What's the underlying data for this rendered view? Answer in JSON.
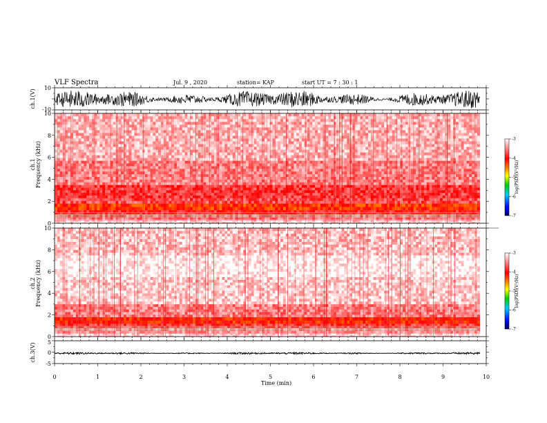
{
  "header": {
    "title": "VLF Spectra",
    "date": "Jul. 9 , 2020",
    "station": "station= KAP",
    "start": "start UT =  7 : 30 : 1"
  },
  "chart_data": [
    {
      "type": "line",
      "panel": "ch.1 waveform",
      "ylabel": "ch.1(V)",
      "ylim": [
        -10,
        10
      ],
      "yticks": [
        "10",
        "-10"
      ],
      "xlim": [
        0,
        10
      ],
      "description_values": {
        "typical_range": [
          -9,
          8
        ]
      },
      "color": "#000000"
    },
    {
      "type": "heatmap",
      "panel": "ch.1 spectrogram",
      "ylabel": "ch.1\nFrequency (kHz)",
      "ylim": [
        0,
        10
      ],
      "yticks": [
        "0",
        "2",
        "4",
        "6",
        "8",
        "10"
      ],
      "xlim": [
        0,
        9.85
      ],
      "bands": [
        {
          "from": 0.0,
          "to": 0.3,
          "level": -3.2
        },
        {
          "from": 0.3,
          "to": 0.8,
          "level": -3.6
        },
        {
          "from": 0.8,
          "to": 1.2,
          "level": -3.9
        },
        {
          "from": 1.2,
          "to": 1.8,
          "level": -4.2
        },
        {
          "from": 1.8,
          "to": 2.3,
          "level": -3.7
        },
        {
          "from": 2.3,
          "to": 3.5,
          "level": -3.8
        },
        {
          "from": 3.5,
          "to": 5.7,
          "level": -3.5
        },
        {
          "from": 5.7,
          "to": 10.0,
          "level": -3.3
        }
      ],
      "colorbar": {
        "label": "log(PSD)(V²/Hz)",
        "range": [
          -7,
          -3
        ],
        "ticks": [
          "-3",
          "-4",
          "-5",
          "-6",
          "-7"
        ]
      }
    },
    {
      "type": "heatmap",
      "panel": "ch.2 spectrogram",
      "ylabel": "ch.2\nFrequency (kHz)",
      "ylim": [
        0,
        10
      ],
      "yticks": [
        "0",
        "2",
        "4",
        "6",
        "8",
        "10"
      ],
      "xlim": [
        0,
        9.85
      ],
      "bands": [
        {
          "from": 0.0,
          "to": 0.3,
          "level": -3.2
        },
        {
          "from": 0.3,
          "to": 0.8,
          "level": -3.5
        },
        {
          "from": 0.8,
          "to": 1.2,
          "level": -3.8
        },
        {
          "from": 1.2,
          "to": 1.8,
          "level": -4.1
        },
        {
          "from": 1.8,
          "to": 3.0,
          "level": -3.5
        },
        {
          "from": 3.0,
          "to": 5.5,
          "level": -3.2
        },
        {
          "from": 5.5,
          "to": 7.5,
          "level": -3.05
        },
        {
          "from": 7.5,
          "to": 10.0,
          "level": -3.25
        }
      ],
      "colorbar": {
        "label": "log(PSD)(V²/Hz)",
        "range": [
          -7,
          -3
        ],
        "ticks": [
          "-3",
          "-4",
          "-5",
          "-6",
          "-7"
        ]
      }
    },
    {
      "type": "line",
      "panel": "ch.3 waveform",
      "ylabel": "ch.3(V)",
      "ylim": [
        -5,
        5
      ],
      "yticks": [
        "5",
        "0",
        "-5"
      ],
      "xlim": [
        0,
        10
      ],
      "xticks": [
        "0",
        "1",
        "2",
        "3",
        "4",
        "5",
        "6",
        "7",
        "8",
        "9",
        "10"
      ],
      "xlabel": "Time (min)",
      "description_values": {
        "typical_range": [
          -0.8,
          0.2
        ]
      },
      "color": "#000000"
    }
  ]
}
